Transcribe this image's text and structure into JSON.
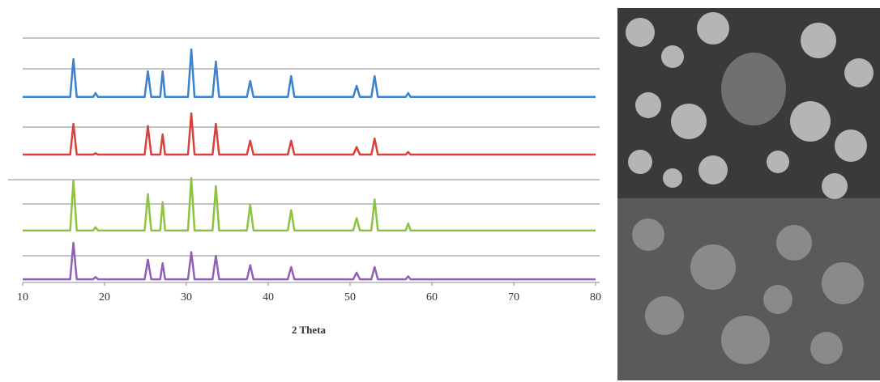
{
  "chart_data": {
    "type": "line",
    "x_label": "2 Theta",
    "x": [
      10,
      15.8,
      16.2,
      16.6,
      18.6,
      18.9,
      19.2,
      24.9,
      25.3,
      25.7,
      26.8,
      27.1,
      27.4,
      30.2,
      30.6,
      31.0,
      33.2,
      33.6,
      34.0,
      37.4,
      37.8,
      38.2,
      42.4,
      42.8,
      43.2,
      50.4,
      50.8,
      51.2,
      52.6,
      53.0,
      53.4,
      56.8,
      57.1,
      57.4,
      80
    ],
    "xlim": [
      10,
      80
    ],
    "xticks": [
      10,
      20,
      30,
      40,
      50,
      60,
      70,
      80
    ],
    "ylim": [
      0,
      100
    ],
    "series": [
      {
        "color": "#3b82d0",
        "values": [
          2,
          2,
          80,
          2,
          2,
          10,
          2,
          2,
          55,
          2,
          2,
          55,
          2,
          2,
          100,
          2,
          2,
          75,
          2,
          2,
          35,
          2,
          2,
          45,
          2,
          2,
          25,
          2,
          2,
          45,
          2,
          2,
          10,
          2,
          2
        ]
      },
      {
        "color": "#d9403a",
        "values": [
          2,
          2,
          75,
          2,
          2,
          5,
          2,
          2,
          70,
          2,
          2,
          50,
          2,
          2,
          100,
          2,
          2,
          75,
          2,
          2,
          35,
          2,
          2,
          35,
          2,
          2,
          20,
          2,
          2,
          40,
          2,
          2,
          8,
          2,
          2
        ]
      },
      {
        "color": "#8cc43c",
        "values": [
          2,
          2,
          95,
          2,
          2,
          8,
          2,
          2,
          70,
          2,
          2,
          55,
          2,
          2,
          100,
          2,
          2,
          85,
          2,
          2,
          50,
          2,
          2,
          40,
          2,
          2,
          25,
          2,
          2,
          60,
          2,
          2,
          15,
          2,
          2
        ]
      },
      {
        "color": "#9060b8",
        "values": [
          2,
          2,
          100,
          2,
          2,
          8,
          2,
          2,
          55,
          2,
          2,
          45,
          2,
          2,
          75,
          2,
          2,
          65,
          2,
          2,
          40,
          2,
          2,
          35,
          2,
          2,
          20,
          2,
          2,
          35,
          2,
          2,
          10,
          2,
          2
        ]
      }
    ]
  }
}
